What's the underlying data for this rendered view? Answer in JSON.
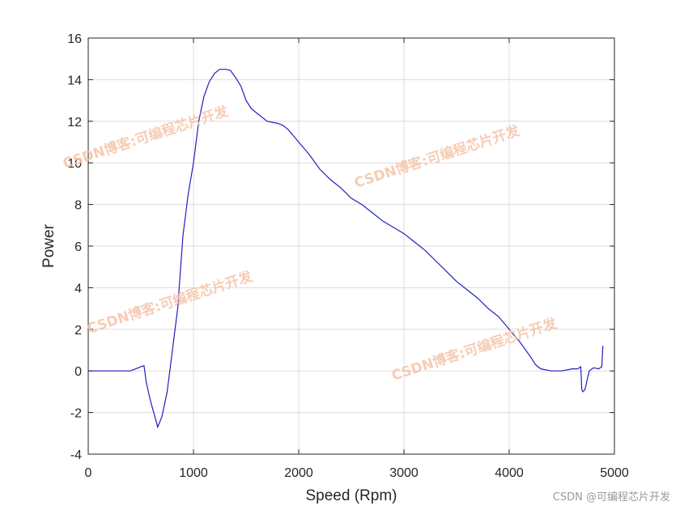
{
  "chart_data": {
    "type": "line",
    "title": "",
    "xlabel": "Speed (Rpm)",
    "ylabel": "Power",
    "xlim": [
      0,
      5000
    ],
    "ylim": [
      -4,
      16
    ],
    "xticks": [
      0,
      1000,
      2000,
      3000,
      4000,
      5000
    ],
    "yticks": [
      -4,
      -2,
      0,
      2,
      4,
      6,
      8,
      10,
      12,
      14,
      16
    ],
    "grid": true,
    "line_color": "#1f1fbf",
    "series": [
      {
        "x": [
          0,
          100,
          200,
          300,
          400,
          450,
          500,
          530,
          550,
          580,
          600,
          650,
          660,
          700,
          750,
          800,
          850,
          900,
          950,
          1000,
          1050,
          1100,
          1150,
          1200,
          1250,
          1300,
          1350,
          1400,
          1450,
          1500,
          1550,
          1600,
          1700,
          1800,
          1850,
          1900,
          1950,
          2000,
          2100,
          2200,
          2300,
          2400,
          2500,
          2600,
          2700,
          2800,
          2900,
          3000,
          3100,
          3200,
          3300,
          3400,
          3500,
          3600,
          3700,
          3800,
          3900,
          4000,
          4100,
          4200,
          4250,
          4300,
          4400,
          4500,
          4600,
          4650,
          4680,
          4690,
          4700,
          4720,
          4760,
          4800,
          4850,
          4880,
          4890
        ],
        "y": [
          0,
          0,
          0,
          0,
          0,
          0.1,
          0.2,
          0.25,
          -0.5,
          -1.2,
          -1.6,
          -2.5,
          -2.7,
          -2.2,
          -1.0,
          1.0,
          3.0,
          6.5,
          8.5,
          10.0,
          12.0,
          13.2,
          13.9,
          14.3,
          14.5,
          14.5,
          14.45,
          14.1,
          13.7,
          13.0,
          12.6,
          12.4,
          12.0,
          11.9,
          11.8,
          11.6,
          11.3,
          11.0,
          10.4,
          9.7,
          9.2,
          8.8,
          8.3,
          8.0,
          7.6,
          7.2,
          6.9,
          6.6,
          6.2,
          5.8,
          5.3,
          4.8,
          4.3,
          3.9,
          3.5,
          3.0,
          2.6,
          2.0,
          1.4,
          0.7,
          0.3,
          0.1,
          0.0,
          0.0,
          0.1,
          0.1,
          0.2,
          -0.9,
          -1.0,
          -0.9,
          0.0,
          0.15,
          0.1,
          0.2,
          1.2
        ]
      }
    ]
  },
  "watermarks": [
    "CSDN博客:可编程芯片开发",
    "CSDN博客:可编程芯片开发",
    "CSDN博客:可编程芯片开发",
    "CSDN博客:可编程芯片开发"
  ],
  "footer_watermark": "CSDN @可编程芯片开发"
}
